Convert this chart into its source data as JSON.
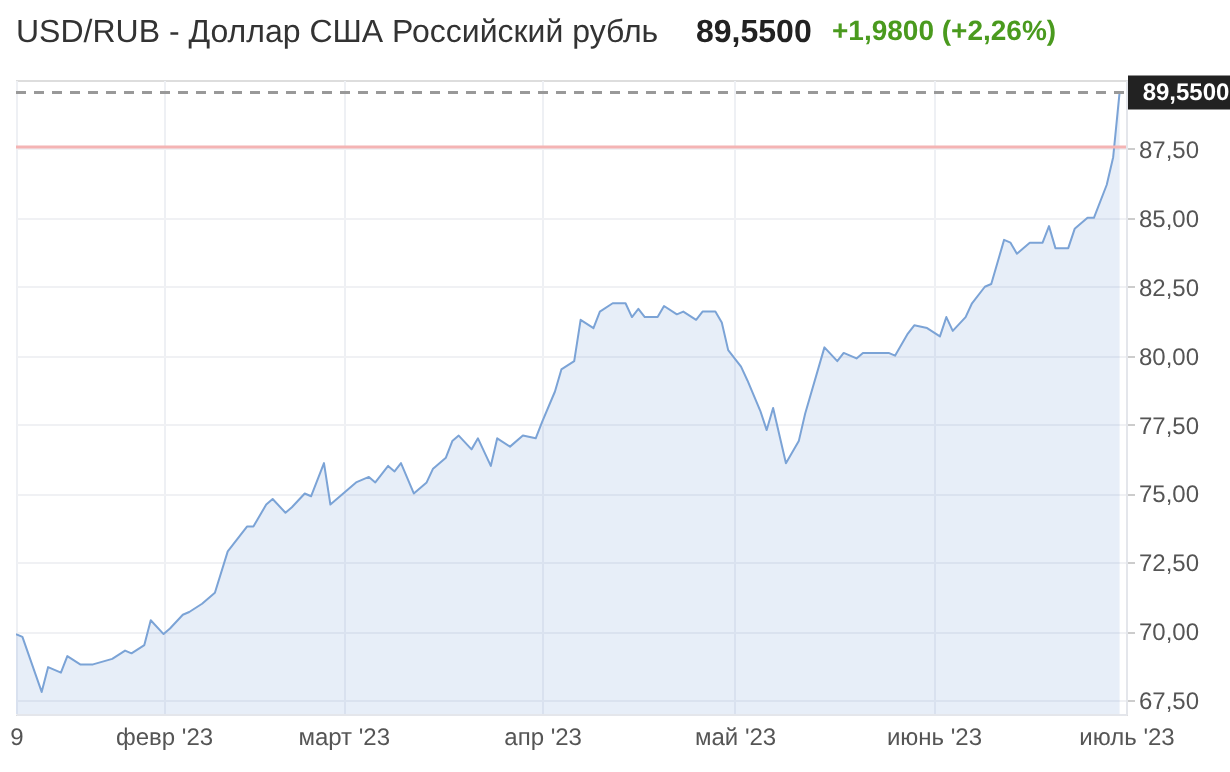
{
  "chart_data": {
    "type": "area",
    "title": "USD/RUB - Доллар США Российский рубль",
    "annotations": [
      "89,5500",
      "+1,9800 (+2,26%)"
    ],
    "x": [
      "2023-01-09",
      "2023-01-10",
      "2023-01-13",
      "2023-01-14",
      "2023-01-16",
      "2023-01-17",
      "2023-01-19",
      "2023-01-21",
      "2023-01-24",
      "2023-01-26",
      "2023-01-27",
      "2023-01-29",
      "2023-01-30",
      "2023-02-01",
      "2023-02-02",
      "2023-02-04",
      "2023-02-05",
      "2023-02-07",
      "2023-02-09",
      "2023-02-11",
      "2023-02-14",
      "2023-02-15",
      "2023-02-17",
      "2023-02-18",
      "2023-02-20",
      "2023-02-21",
      "2023-02-23",
      "2023-02-24",
      "2023-02-26",
      "2023-02-27",
      "2023-03-01",
      "2023-03-03",
      "2023-03-05",
      "2023-03-06",
      "2023-03-08",
      "2023-03-09",
      "2023-03-10",
      "2023-03-12",
      "2023-03-14",
      "2023-03-15",
      "2023-03-17",
      "2023-03-18",
      "2023-03-19",
      "2023-03-21",
      "2023-03-22",
      "2023-03-24",
      "2023-03-25",
      "2023-03-27",
      "2023-03-29",
      "2023-03-31",
      "2023-04-01",
      "2023-04-03",
      "2023-04-04",
      "2023-04-06",
      "2023-04-07",
      "2023-04-09",
      "2023-04-10",
      "2023-04-12",
      "2023-04-14",
      "2023-04-15",
      "2023-04-16",
      "2023-04-17",
      "2023-04-19",
      "2023-04-20",
      "2023-04-22",
      "2023-04-23",
      "2023-04-25",
      "2023-04-26",
      "2023-04-28",
      "2023-04-29",
      "2023-04-30",
      "2023-05-02",
      "2023-05-03",
      "2023-05-05",
      "2023-05-06",
      "2023-05-07",
      "2023-05-09",
      "2023-05-11",
      "2023-05-12",
      "2023-05-15",
      "2023-05-17",
      "2023-05-18",
      "2023-05-20",
      "2023-05-21",
      "2023-05-25",
      "2023-05-26",
      "2023-05-28",
      "2023-05-29",
      "2023-05-31",
      "2023-06-02",
      "2023-06-03",
      "2023-06-04",
      "2023-06-06",
      "2023-06-07",
      "2023-06-09",
      "2023-06-10",
      "2023-06-12",
      "2023-06-13",
      "2023-06-14",
      "2023-06-16",
      "2023-06-18",
      "2023-06-19",
      "2023-06-20",
      "2023-06-22",
      "2023-06-23",
      "2023-06-25",
      "2023-06-26",
      "2023-06-28",
      "2023-06-29",
      "2023-06-30"
    ],
    "series": [
      {
        "color": "#7ba3d6",
        "values": [
          69.9,
          69.8,
          67.8,
          68.7,
          68.5,
          69.1,
          68.8,
          68.8,
          69.0,
          69.3,
          69.2,
          69.5,
          70.4,
          69.9,
          70.1,
          70.6,
          70.7,
          71.0,
          71.4,
          72.9,
          73.8,
          73.8,
          74.6,
          74.8,
          74.3,
          74.5,
          75.0,
          74.9,
          76.1,
          74.6,
          75.0,
          75.4,
          75.6,
          75.4,
          76.0,
          75.8,
          76.1,
          75.0,
          75.4,
          75.9,
          76.3,
          76.9,
          77.1,
          76.6,
          77.0,
          76.0,
          77.0,
          76.7,
          77.1,
          77.0,
          77.6,
          78.7,
          79.5,
          79.8,
          81.3,
          81.0,
          81.6,
          81.9,
          81.9,
          81.4,
          81.7,
          81.4,
          81.4,
          81.8,
          81.5,
          81.6,
          81.3,
          81.6,
          81.6,
          81.2,
          80.2,
          79.6,
          79.1,
          78.0,
          77.3,
          78.1,
          76.1,
          76.9,
          77.9,
          80.3,
          79.8,
          80.1,
          79.9,
          80.1,
          80.1,
          80.0,
          80.8,
          81.1,
          81.0,
          80.7,
          81.4,
          80.9,
          81.4,
          81.9,
          82.5,
          82.6,
          84.2,
          84.1,
          83.7,
          84.1,
          84.1,
          84.7,
          83.9,
          83.9,
          84.6,
          85.0,
          85.0,
          86.2,
          87.2,
          89.55
        ]
      }
    ],
    "xlim": [
      "2023-01-09",
      "2023-07-01"
    ],
    "xticks": [
      {
        "value": "2023-01-09",
        "label": "9"
      },
      {
        "value": "2023-02-01",
        "label": "февр '23"
      },
      {
        "value": "2023-03-01",
        "label": "март '23"
      },
      {
        "value": "2023-04-01",
        "label": "апр '23"
      },
      {
        "value": "2023-05-01",
        "label": "май '23"
      },
      {
        "value": "2023-06-01",
        "label": "июнь '23"
      },
      {
        "value": "2023-07-01",
        "label": "июль '23"
      }
    ],
    "ylim": [
      67.0,
      90.0
    ],
    "yticks": [
      {
        "value": 67.5,
        "label": "67,50"
      },
      {
        "value": 70,
        "label": "70,00"
      },
      {
        "value": 72.5,
        "label": "72,50"
      },
      {
        "value": 75,
        "label": "75,00"
      },
      {
        "value": 77.5,
        "label": "77,50"
      },
      {
        "value": 80,
        "label": "80,00"
      },
      {
        "value": 82.5,
        "label": "82,50"
      },
      {
        "value": 85,
        "label": "85,00"
      },
      {
        "value": 87.5,
        "label": "87,50"
      }
    ],
    "ref_lines": [
      {
        "axis": "y",
        "value": 89.55,
        "label": "89,5500",
        "color": "#999999",
        "line_style": "dashed"
      },
      {
        "axis": "y",
        "value": 87.57,
        "color": "#f4b4b4",
        "line_style": "solid"
      }
    ],
    "grid": true
  }
}
